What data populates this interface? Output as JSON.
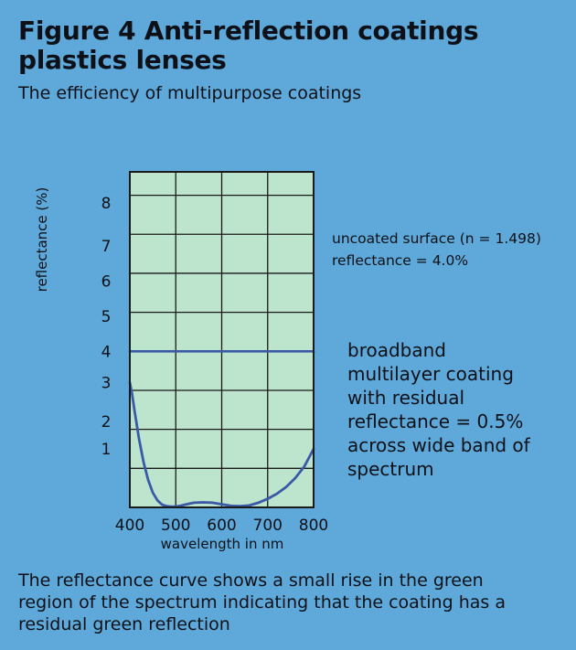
{
  "header": {
    "title_line1": "Figure 4 Anti-reflection coatings",
    "title_line2": "plastics lenses",
    "subtitle": "The efficiency of multipurpose coatings"
  },
  "annotations": {
    "uncoated_line1": "uncoated surface (n = 1.498)",
    "uncoated_line2": "reflectance = 4.0%",
    "broadband_line1": "broadband",
    "broadband_line2": "multilayer coating",
    "broadband_line3": "with residual",
    "broadband_line4": "reflectance = 0.5%",
    "broadband_line5": "across wide band of",
    "broadband_line6": "spectrum"
  },
  "caption": {
    "line1": "The reflectance curve shows a small rise in the green",
    "line2": "region of the spectrum indicating that the coating has a",
    "line3": "residual green reflection"
  },
  "colors": {
    "background": "#5ea8da",
    "plot_fill": "#bde4cc",
    "grid": "#1a1a1a",
    "curve": "#3a5aa8"
  },
  "chart_data": {
    "type": "line",
    "title": "",
    "xlabel": "wavelength in nm",
    "ylabel": "reflectance (%)",
    "xlim": [
      400,
      800
    ],
    "ylim": [
      0,
      8.6
    ],
    "x_ticks": [
      400,
      500,
      600,
      700,
      800
    ],
    "y_ticks": [
      1,
      2,
      3,
      4,
      5,
      6,
      7,
      8
    ],
    "y_tick_positions": [
      1.0,
      2.0,
      3.0,
      4.0,
      5.0,
      6.0,
      7.0,
      8.0
    ],
    "y_tick_label_values": [
      1.5,
      2.2,
      3.2,
      4.0,
      4.9,
      5.8,
      6.7,
      7.8
    ],
    "grid": true,
    "series": [
      {
        "name": "",
        "style": "horizontal",
        "x": [
          400,
          800
        ],
        "y": [
          4.0,
          4.0
        ]
      },
      {
        "name": "",
        "style": "curve",
        "x": [
          400,
          405,
          410,
          420,
          430,
          440,
          450,
          460,
          470,
          480,
          490,
          500,
          510,
          520,
          540,
          560,
          580,
          600,
          620,
          640,
          660,
          680,
          700,
          720,
          740,
          760,
          780,
          800
        ],
        "y": [
          3.2,
          2.9,
          2.5,
          1.75,
          1.15,
          0.7,
          0.38,
          0.18,
          0.07,
          0.03,
          0.02,
          0.02,
          0.04,
          0.07,
          0.12,
          0.13,
          0.12,
          0.08,
          0.04,
          0.03,
          0.05,
          0.12,
          0.22,
          0.35,
          0.52,
          0.75,
          1.05,
          1.5
        ]
      }
    ]
  }
}
